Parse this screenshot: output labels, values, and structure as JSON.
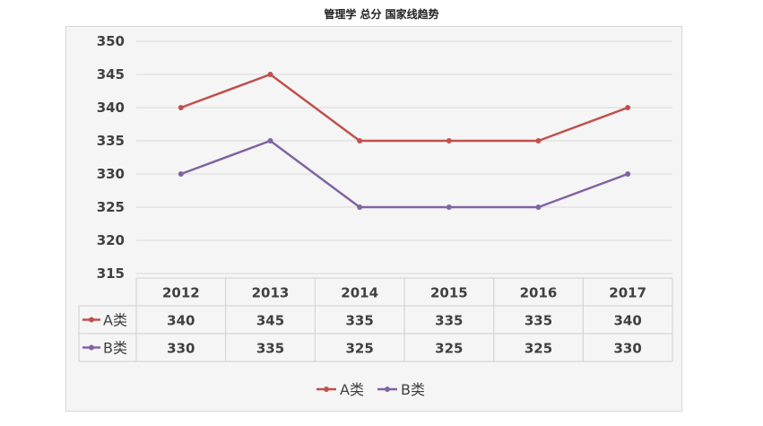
{
  "title": "管理学 总分 国家线趋势",
  "chart_data": {
    "type": "line",
    "categories": [
      "2012",
      "2013",
      "2014",
      "2015",
      "2016",
      "2017"
    ],
    "series": [
      {
        "name": "A类",
        "values": [
          340,
          345,
          335,
          335,
          335,
          340
        ],
        "color": "#c0504d"
      },
      {
        "name": "B类",
        "values": [
          330,
          335,
          325,
          325,
          325,
          330
        ],
        "color": "#8064a2"
      }
    ],
    "ylim": [
      315,
      350
    ],
    "yticks": [
      "315",
      "320",
      "325",
      "330",
      "335",
      "340",
      "345",
      "350"
    ],
    "grid": true,
    "data_table": true,
    "legend_position": "bottom"
  }
}
